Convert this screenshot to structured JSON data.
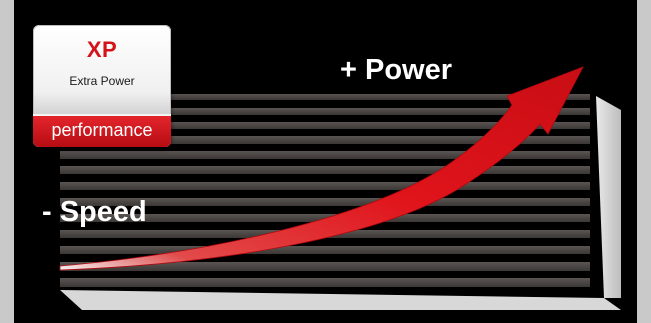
{
  "badge": {
    "title": "XP",
    "subtitle": "Extra Power",
    "strip_label": "performance"
  },
  "labels": {
    "top_right": "+ Power",
    "bottom_left": "- Speed"
  },
  "colors": {
    "background": "#000000",
    "frame": "#d3d3d3",
    "stripe": "#4f4a47",
    "arrow": "#e0141b",
    "badge_red": "#d4121a"
  }
}
